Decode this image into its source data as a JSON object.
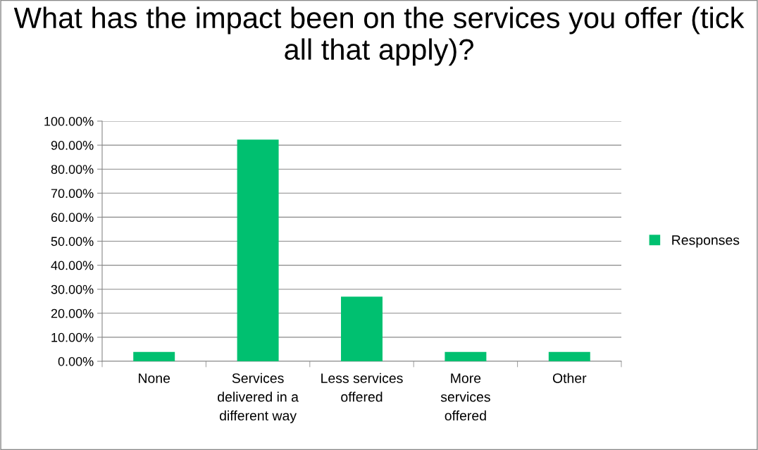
{
  "chart_data": {
    "type": "bar",
    "title": "What has the impact been on the services you offer (tick all that apply)?",
    "categories": [
      "None",
      "Services\ndelivered in a\ndifferent way",
      "Less services\noffered",
      "More\nservices\noffered",
      "Other"
    ],
    "series": [
      {
        "name": "Responses",
        "color": "#00c070",
        "values": [
          3.9,
          92.3,
          26.9,
          3.9,
          3.9
        ]
      }
    ],
    "ylim": [
      0,
      100
    ],
    "yticks": [
      {
        "value": 0,
        "label": "0.00%"
      },
      {
        "value": 10,
        "label": "10.00%"
      },
      {
        "value": 20,
        "label": "20.00%"
      },
      {
        "value": 30,
        "label": "30.00%"
      },
      {
        "value": 40,
        "label": "40.00%"
      },
      {
        "value": 50,
        "label": "50.00%"
      },
      {
        "value": 60,
        "label": "60.00%"
      },
      {
        "value": 70,
        "label": "70.00%"
      },
      {
        "value": 80,
        "label": "80.00%"
      },
      {
        "value": 90,
        "label": "90.00%"
      },
      {
        "value": 100,
        "label": "100.00%"
      }
    ],
    "grid": "y",
    "legend": "right"
  }
}
